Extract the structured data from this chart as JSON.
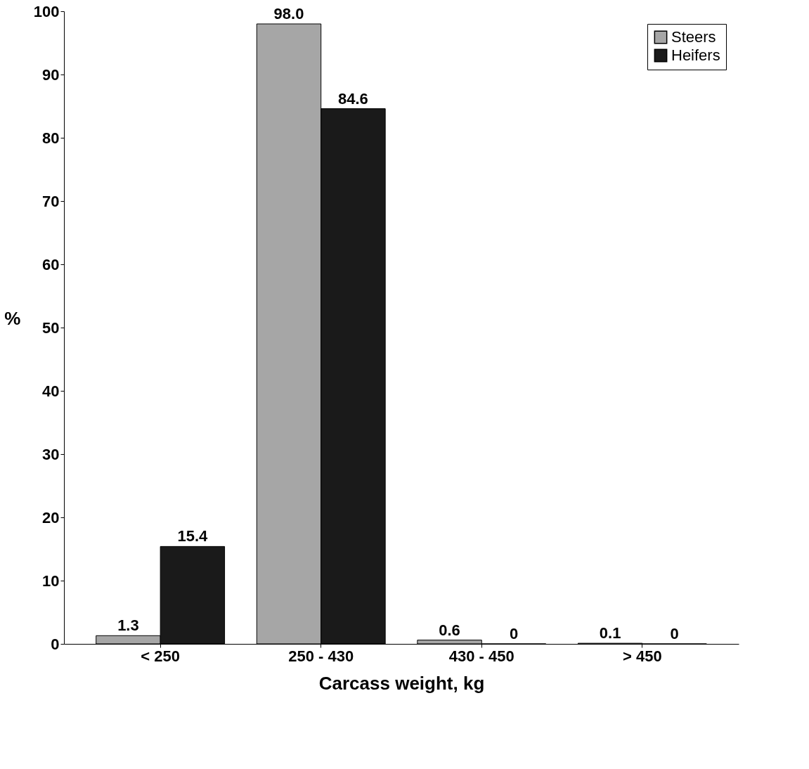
{
  "chart_data": {
    "type": "bar",
    "xlabel": "Carcass weight, kg",
    "ylabel": "%",
    "categories": [
      "< 250",
      "250 - 430",
      "430 - 450",
      "> 450"
    ],
    "series": [
      {
        "name": "Steers",
        "color": "#a6a6a6",
        "values": [
          1.3,
          98.0,
          0.6,
          0.1
        ]
      },
      {
        "name": "Heifers",
        "color": "#1a1a1a",
        "values": [
          15.4,
          84.6,
          0,
          0
        ]
      }
    ],
    "value_labels": [
      [
        "1.3",
        "98.0",
        "0.6",
        "0.1"
      ],
      [
        "15.4",
        "84.6",
        "0",
        "0"
      ]
    ],
    "ylim": [
      0,
      100
    ],
    "yticks": [
      0,
      10,
      20,
      30,
      40,
      50,
      60,
      70,
      80,
      90,
      100
    ],
    "grid": false,
    "legend": "top right"
  }
}
